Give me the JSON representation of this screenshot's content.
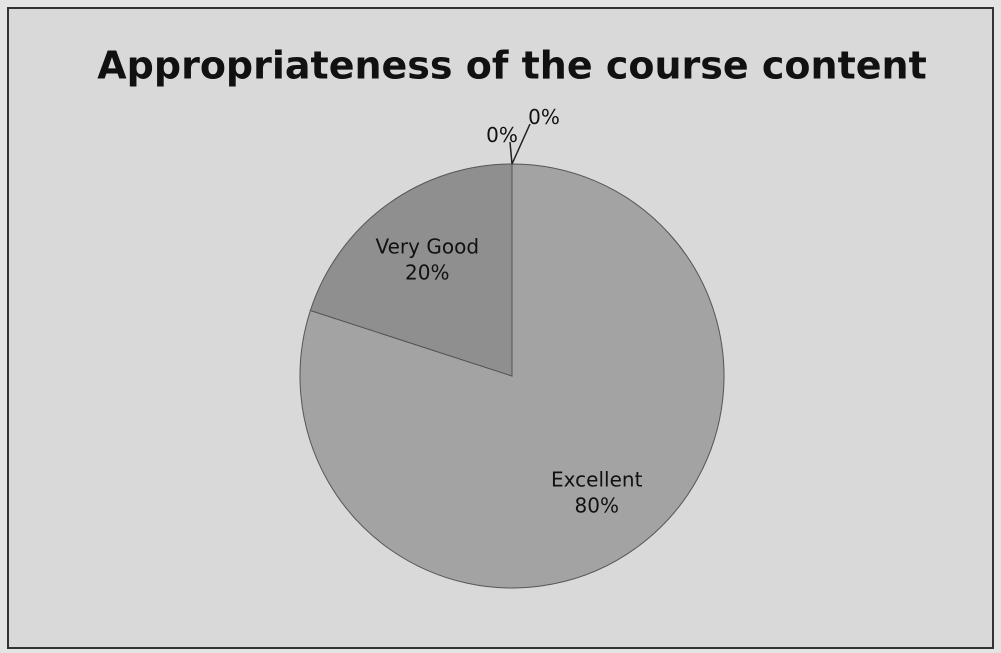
{
  "chart_data": {
    "type": "pie",
    "title": "Appropriateness of the course content",
    "categories": [
      "Excellent",
      "Very Good",
      null,
      null
    ],
    "values": [
      80,
      20,
      0,
      0
    ],
    "value_labels": [
      "80%",
      "20%",
      "0%",
      "0%"
    ],
    "colors": [
      "#a3a3a3",
      "#8f8f8f",
      "#bdbdbd",
      "#b0b0b0"
    ]
  }
}
